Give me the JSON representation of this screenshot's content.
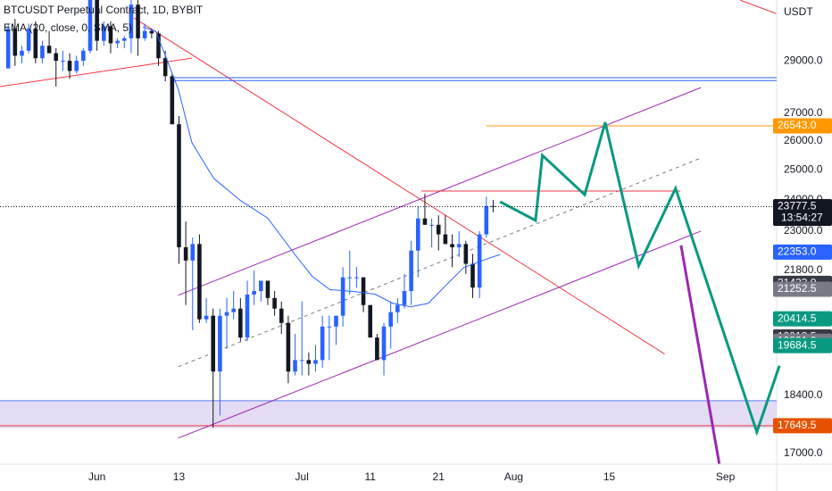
{
  "chart_data": {
    "type": "candlestick",
    "title": "BTCUSDT Perpetual Contract, 1D, BYBIT",
    "indicator": "EMA (20, close, 0, SMA, 5)",
    "currency": "USDT",
    "log_scale": true,
    "up_color": "#2962ff",
    "down_color": "#131722",
    "xlim": [
      -14.2,
      99.5
    ],
    "ylim": [
      16750,
      31500
    ],
    "xticks": [
      {
        "value": 0,
        "label": "Jun"
      },
      {
        "value": 12,
        "label": "13"
      },
      {
        "value": 30,
        "label": "Jul"
      },
      {
        "value": 40,
        "label": "11"
      },
      {
        "value": 50,
        "label": "21"
      },
      {
        "value": 61,
        "label": "Aug"
      },
      {
        "value": 75,
        "label": "15"
      },
      {
        "value": 92,
        "label": "Sep"
      }
    ],
    "yticks": [
      {
        "value": 29000,
        "label": "29000.0"
      },
      {
        "value": 27000,
        "label": "27000.0"
      },
      {
        "value": 26000,
        "label": "26000.0"
      },
      {
        "value": 25000,
        "label": "25000.0"
      },
      {
        "value": 24000,
        "label": "24000.0"
      },
      {
        "value": 23000,
        "label": "23000.0"
      },
      {
        "value": 21800,
        "label": "21800.0"
      },
      {
        "value": 18400,
        "label": "18400.0"
      },
      {
        "value": 17000,
        "label": "17000.0"
      }
    ],
    "x": [
      -13,
      -12,
      -11,
      -10,
      -9,
      -8,
      -7,
      -6,
      -5,
      -4,
      -3,
      -2,
      -1,
      0,
      1,
      2,
      3,
      4,
      5,
      6,
      7,
      8,
      9,
      10,
      11,
      12,
      13,
      14,
      15,
      16,
      17,
      18,
      19,
      20,
      21,
      22,
      23,
      24,
      25,
      26,
      27,
      28,
      29,
      30,
      31,
      32,
      33,
      34,
      35,
      36,
      37,
      38,
      39,
      40,
      41,
      42,
      43,
      44,
      45,
      46,
      47,
      48,
      49,
      50,
      51,
      52,
      53,
      54,
      55,
      56,
      57,
      58
    ],
    "ohlc": [
      [
        28700,
        30500,
        28700,
        30300
      ],
      [
        30300,
        30700,
        28800,
        29200
      ],
      [
        29200,
        29600,
        28900,
        29400
      ],
      [
        29400,
        30500,
        29300,
        30300
      ],
      [
        30300,
        30600,
        28900,
        29100
      ],
      [
        29100,
        29800,
        28900,
        29600
      ],
      [
        29600,
        30200,
        29300,
        29300
      ],
      [
        29300,
        29500,
        28000,
        29000
      ],
      [
        29000,
        29400,
        28600,
        29000
      ],
      [
        29000,
        29300,
        28300,
        28600
      ],
      [
        28600,
        29200,
        28500,
        29000
      ],
      [
        29000,
        29500,
        28800,
        29400
      ],
      [
        29400,
        31800,
        29300,
        31700
      ],
      [
        31700,
        31900,
        29400,
        29800
      ],
      [
        29800,
        30600,
        29600,
        30400
      ],
      [
        30400,
        30600,
        29300,
        29700
      ],
      [
        29700,
        29900,
        29500,
        29800
      ],
      [
        29800,
        30000,
        29500,
        29900
      ],
      [
        29900,
        31500,
        29300,
        31300
      ],
      [
        31300,
        31500,
        29200,
        29900
      ],
      [
        29900,
        30500,
        29800,
        30200
      ],
      [
        30200,
        30300,
        29900,
        30100
      ],
      [
        30100,
        30200,
        28800,
        29100
      ],
      [
        29100,
        29400,
        28200,
        28400
      ],
      [
        28400,
        28500,
        26600,
        26600
      ],
      [
        26600,
        26900,
        22000,
        22500
      ],
      [
        22500,
        23300,
        20800,
        22100
      ],
      [
        22100,
        22800,
        20100,
        22600
      ],
      [
        22600,
        22900,
        20300,
        20400
      ],
      [
        20400,
        21000,
        20300,
        20500
      ],
      [
        20500,
        20700,
        17600,
        19000
      ],
      [
        19000,
        20700,
        17900,
        20500
      ],
      [
        20500,
        21000,
        19600,
        20600
      ],
      [
        20600,
        21200,
        20400,
        20700
      ],
      [
        20700,
        21000,
        19800,
        19900
      ],
      [
        19900,
        21500,
        19800,
        21100
      ],
      [
        21100,
        21800,
        20800,
        21200
      ],
      [
        21200,
        21500,
        20900,
        21500
      ],
      [
        21500,
        21500,
        20800,
        21000
      ],
      [
        21000,
        21200,
        20500,
        20700
      ],
      [
        20700,
        20900,
        20000,
        20300
      ],
      [
        20300,
        20500,
        18700,
        19000
      ],
      [
        19000,
        20000,
        18900,
        19300
      ],
      [
        19300,
        20900,
        18900,
        19300
      ],
      [
        19300,
        19500,
        18900,
        19200
      ],
      [
        19200,
        19700,
        19000,
        19300
      ],
      [
        19300,
        20500,
        19100,
        20200
      ],
      [
        20200,
        20500,
        19300,
        20200
      ],
      [
        20200,
        20400,
        19700,
        20500
      ],
      [
        20500,
        21900,
        20200,
        21600
      ],
      [
        21600,
        22400,
        21100,
        21600
      ],
      [
        21600,
        21900,
        21300,
        21600
      ],
      [
        21600,
        21600,
        20600,
        20800
      ],
      [
        20800,
        20800,
        19900,
        19900
      ],
      [
        19900,
        20000,
        19300,
        19300
      ],
      [
        19300,
        20300,
        18900,
        20200
      ],
      [
        20200,
        20900,
        19600,
        20600
      ],
      [
        20600,
        21000,
        20300,
        20800
      ],
      [
        20800,
        21700,
        20700,
        21200
      ],
      [
        21200,
        22700,
        20800,
        22400
      ],
      [
        22400,
        23800,
        21600,
        23400
      ],
      [
        23400,
        24200,
        23200,
        23200
      ],
      [
        23200,
        23400,
        22500,
        23200
      ],
      [
        23200,
        23500,
        22400,
        22900
      ],
      [
        22900,
        23500,
        22600,
        22600
      ],
      [
        22600,
        22900,
        21900,
        22500
      ],
      [
        22500,
        23000,
        22200,
        22600
      ],
      [
        22600,
        22700,
        21700,
        22000
      ],
      [
        22000,
        22300,
        21000,
        21300
      ],
      [
        21300,
        23000,
        21000,
        22900
      ],
      [
        22900,
        24100,
        22800,
        23800
      ],
      [
        23800,
        24000,
        23600,
        23777.5
      ]
    ],
    "ema": {
      "color": "#2962ff",
      "x": [
        6.7,
        8.6,
        9.9,
        11.9,
        13.9,
        17.1,
        21,
        25,
        28.9,
        31.5,
        34.1,
        37.4,
        40.7,
        43.3,
        45.9,
        48.5,
        51.1,
        53.7,
        57,
        59
      ],
      "values": [
        30370,
        30190,
        29280,
        27900,
        25940,
        24710,
        23980,
        23410,
        22300,
        21630,
        21240,
        21190,
        21110,
        20850,
        20750,
        20850,
        21370,
        21890,
        22140,
        22280
      ]
    },
    "zone": {
      "color": "#d1c4e9",
      "border": "#5b7cfa",
      "values": [
        18262,
        17590
      ]
    },
    "drawings": [
      {
        "color": "#f23645",
        "x": [
          -14.2,
          13.9
        ],
        "values": [
          27997,
          29106
        ]
      },
      {
        "color": "#f23645",
        "x": [
          5.4,
          83.1
        ],
        "values": [
          30740,
          19460
        ]
      },
      {
        "color": "#f23645",
        "x": [
          94.2,
          99.4
        ],
        "values": [
          31490,
          30926
        ]
      },
      {
        "color": "#2962ff",
        "x": [
          11,
          99.5
        ],
        "values": [
          28340,
          28340
        ]
      },
      {
        "color": "#2962ff",
        "x": [
          11,
          99.5
        ],
        "values": [
          28230,
          28230
        ]
      },
      {
        "color": "#9c27b0",
        "x": [
          11.9,
          88.4
        ],
        "values": [
          21080,
          27960
        ]
      },
      {
        "color": "#9c27b0",
        "x": [
          11.9,
          88.4
        ],
        "values": [
          17357,
          23000
        ]
      },
      {
        "color": "#787b86",
        "x": [
          11.9,
          88.4
        ],
        "values": [
          19126,
          25405
        ],
        "dash": true
      },
      {
        "color": "#ff9800",
        "x": [
          57,
          99.5
        ],
        "values": [
          26543,
          26543
        ]
      },
      {
        "color": "#f23645",
        "x": [
          47.5,
          85.4
        ],
        "values": [
          24290,
          24290
        ]
      },
      {
        "color": "#f23645",
        "x": [
          -14.2,
          99.5
        ],
        "values": [
          17649.5,
          17649.5
        ]
      },
      {
        "color": "#089981",
        "x": [
          59,
          64.2,
          65.2,
          71.4,
          74.4,
          79.3,
          84.7,
          96.6,
          99.9
        ],
        "values": [
          23940,
          23340,
          25500,
          24170,
          26670,
          21940,
          24380,
          17500,
          19150
        ],
        "width": 3
      },
      {
        "color": "#9c27b0",
        "x": [
          85.5,
          91.1
        ],
        "values": [
          22560,
          16760
        ],
        "width": 3
      }
    ],
    "price_labels": [
      {
        "value": 26543,
        "label": "26543.0",
        "color": "#ff9800"
      },
      {
        "value": 23777.5,
        "color": "#131722",
        "countdown": "13:54:27"
      },
      {
        "value": 22353,
        "label": "22353.0",
        "color": "#2962ff"
      },
      {
        "value": 21423,
        "label": "21423.0",
        "color": "#363a45"
      },
      {
        "value": 21252.5,
        "color": "#787b86"
      },
      {
        "value": 20414.5,
        "color": "#089981"
      },
      {
        "value": 19918.5,
        "color": "#363a45"
      },
      {
        "value": 19801,
        "label": "19801.0",
        "color": "#787b86"
      },
      {
        "value": 19684.5,
        "color": "#089981"
      },
      {
        "value": 17649.5,
        "color": "#e65100"
      }
    ]
  }
}
